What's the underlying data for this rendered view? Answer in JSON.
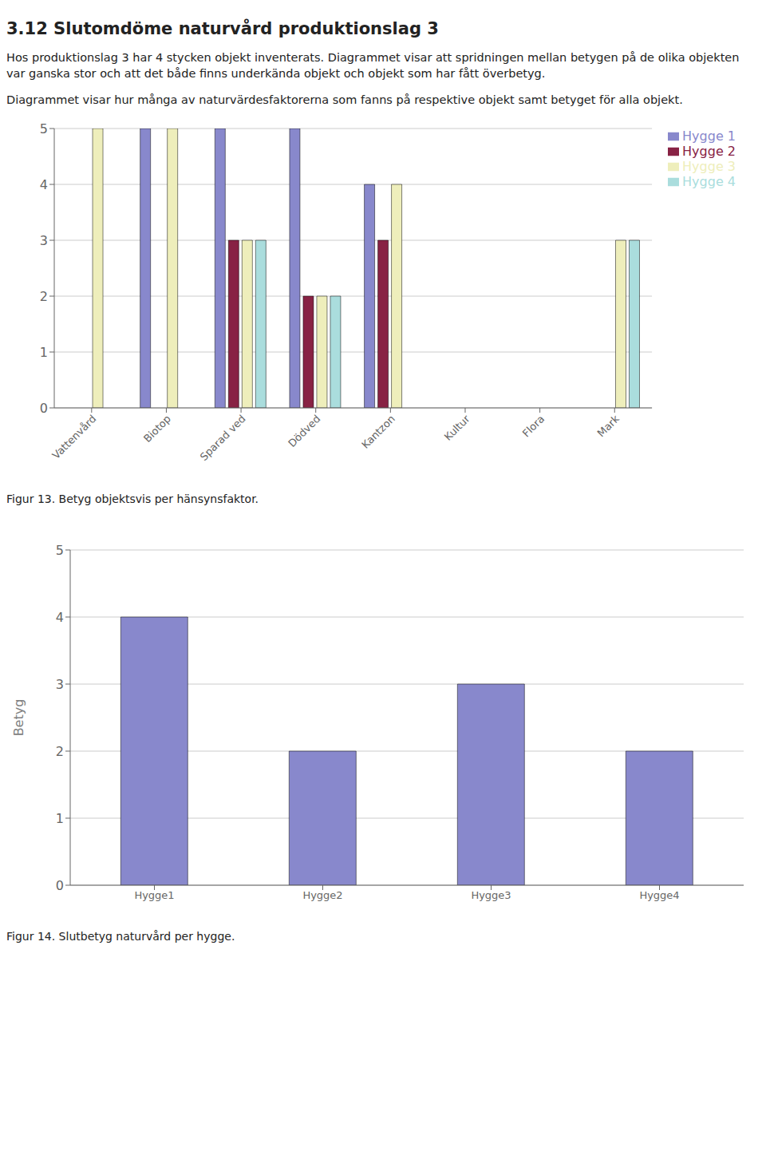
{
  "chart_data": [
    {
      "type": "bar",
      "title": "3.12 Slutomdöme naturvård produktionslag 3",
      "annotations": [
        "Hos produktionslag 3 har 4 stycken objekt inventerats. Diagrammet visar att spridningen mellan betygen på de olika objekten var ganska stor och att det både finns underkända objekt och objekt som har fått överbetyg.",
        "Diagrammet visar hur många av naturvärdesfaktorerna som fanns på respektive objekt samt betyget för alla objekt."
      ],
      "categories": [
        "Vattenvård",
        "Biotop",
        "Sparad ved",
        "Dödved",
        "Kantzon",
        "Kultur",
        "Flora",
        "Mark"
      ],
      "series": [
        {
          "name": "Hygge 1",
          "color": "#8888CC",
          "values": [
            0,
            5,
            5,
            5,
            4,
            0,
            0,
            0
          ]
        },
        {
          "name": "Hygge 2",
          "color": "#882244",
          "values": [
            0,
            0,
            3,
            2,
            3,
            0,
            0,
            0
          ]
        },
        {
          "name": "Hygge 3",
          "color": "#EEEEBB",
          "values": [
            5,
            5,
            3,
            2,
            4,
            0,
            0,
            3
          ]
        },
        {
          "name": "Hygge 4",
          "color": "#AADDDD",
          "values": [
            0,
            0,
            3,
            2,
            0,
            0,
            0,
            3
          ]
        }
      ],
      "ylim": [
        0,
        5
      ],
      "yticks": [
        0,
        1,
        2,
        3,
        4,
        5
      ],
      "grid": true,
      "legend": "right",
      "caption": "Figur 13. Betyg objektsvis per hänsynsfaktor."
    },
    {
      "type": "bar",
      "categories": [
        "Hygge1",
        "Hygge2",
        "Hygge3",
        "Hygge4"
      ],
      "values": [
        4,
        2,
        3,
        2
      ],
      "color": "#8888CC",
      "ylabel": "Betyg",
      "ylim": [
        0,
        5
      ],
      "yticks": [
        0,
        1,
        2,
        3,
        4,
        5
      ],
      "grid": true,
      "caption": "Figur 14. Slutbetyg naturvård per hygge."
    }
  ]
}
